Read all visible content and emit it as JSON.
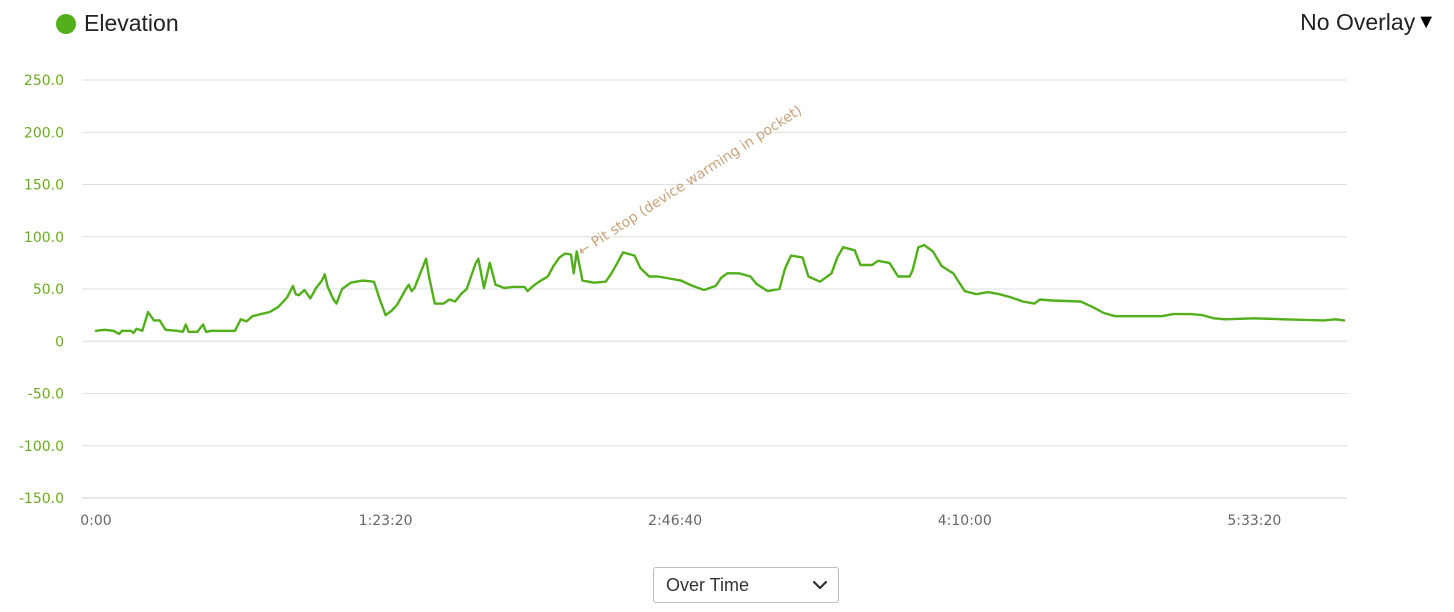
{
  "legend": {
    "label": "Elevation",
    "color": "#52ae1b"
  },
  "overlay": {
    "label": "No Overlay",
    "caret": "▼"
  },
  "mode_select": {
    "selected": "Over Time",
    "icon": "chevron-down-icon"
  },
  "chart_data": {
    "type": "line",
    "title": "",
    "series": [
      {
        "name": "Elevation",
        "color": "#52ae1b"
      }
    ],
    "xlim": [
      0,
      21600
    ],
    "ylim": [
      -150,
      250
    ],
    "y_ticks": [
      250,
      200,
      150,
      100,
      50,
      0,
      -50,
      -100,
      -150
    ],
    "y_tick_labels": [
      "250.0",
      "200.0",
      "150.0",
      "100.0",
      "50.0",
      "0",
      "-50.0",
      "-100.0",
      "-150.0"
    ],
    "x_ticks": [
      0,
      5000,
      10000,
      15000,
      20000
    ],
    "x_tick_labels": [
      "0:00",
      "1:23:20",
      "2:46:40",
      "4:10:00",
      "5:33:20"
    ],
    "grid": true,
    "label_color": "#6aaa1f",
    "x_label_color": "#666666",
    "annotation": {
      "text": "← Pit stop (device warming in pocket)",
      "x": 8300,
      "y": 90,
      "color": "#c8a27a"
    },
    "points": [
      [
        0,
        10
      ],
      [
        150,
        11
      ],
      [
        300,
        10
      ],
      [
        400,
        7
      ],
      [
        450,
        10
      ],
      [
        600,
        10
      ],
      [
        650,
        8
      ],
      [
        700,
        12
      ],
      [
        800,
        10
      ],
      [
        900,
        28
      ],
      [
        1000,
        20
      ],
      [
        1100,
        20
      ],
      [
        1200,
        11
      ],
      [
        1400,
        10
      ],
      [
        1500,
        9
      ],
      [
        1550,
        16
      ],
      [
        1600,
        9
      ],
      [
        1750,
        9
      ],
      [
        1850,
        16
      ],
      [
        1900,
        9
      ],
      [
        2000,
        10
      ],
      [
        2300,
        10
      ],
      [
        2400,
        10
      ],
      [
        2500,
        21
      ],
      [
        2600,
        19
      ],
      [
        2700,
        24
      ],
      [
        2850,
        26
      ],
      [
        3000,
        28
      ],
      [
        3150,
        33
      ],
      [
        3300,
        42
      ],
      [
        3400,
        53
      ],
      [
        3450,
        45
      ],
      [
        3500,
        44
      ],
      [
        3600,
        49
      ],
      [
        3700,
        41
      ],
      [
        3800,
        51
      ],
      [
        3900,
        58
      ],
      [
        3950,
        64
      ],
      [
        4000,
        52
      ],
      [
        4100,
        40
      ],
      [
        4150,
        36
      ],
      [
        4250,
        50
      ],
      [
        4400,
        56
      ],
      [
        4600,
        58
      ],
      [
        4800,
        57
      ],
      [
        4900,
        40
      ],
      [
        5000,
        25
      ],
      [
        5100,
        29
      ],
      [
        5200,
        35
      ],
      [
        5350,
        50
      ],
      [
        5400,
        54
      ],
      [
        5450,
        48
      ],
      [
        5500,
        51
      ],
      [
        5600,
        65
      ],
      [
        5700,
        79
      ],
      [
        5750,
        62
      ],
      [
        5850,
        36
      ],
      [
        6000,
        36
      ],
      [
        6100,
        40
      ],
      [
        6200,
        38
      ],
      [
        6300,
        45
      ],
      [
        6400,
        50
      ],
      [
        6550,
        74
      ],
      [
        6600,
        79
      ],
      [
        6700,
        51
      ],
      [
        6800,
        75
      ],
      [
        6900,
        54
      ],
      [
        7050,
        51
      ],
      [
        7200,
        52
      ],
      [
        7400,
        52
      ],
      [
        7450,
        48
      ],
      [
        7550,
        53
      ],
      [
        7650,
        57
      ],
      [
        7800,
        62
      ],
      [
        7900,
        72
      ],
      [
        8000,
        80
      ],
      [
        8100,
        84
      ],
      [
        8200,
        83
      ],
      [
        8250,
        65
      ],
      [
        8300,
        86
      ],
      [
        8400,
        58
      ],
      [
        8600,
        56
      ],
      [
        8800,
        57
      ],
      [
        8900,
        65
      ],
      [
        9000,
        75
      ],
      [
        9100,
        85
      ],
      [
        9300,
        82
      ],
      [
        9400,
        70
      ],
      [
        9550,
        62
      ],
      [
        9700,
        62
      ],
      [
        9900,
        60
      ],
      [
        10100,
        58
      ],
      [
        10300,
        53
      ],
      [
        10500,
        49
      ],
      [
        10700,
        53
      ],
      [
        10800,
        61
      ],
      [
        10900,
        65
      ],
      [
        11100,
        65
      ],
      [
        11300,
        62
      ],
      [
        11400,
        55
      ],
      [
        11600,
        48
      ],
      [
        11800,
        50
      ],
      [
        11900,
        70
      ],
      [
        12000,
        82
      ],
      [
        12200,
        80
      ],
      [
        12300,
        62
      ],
      [
        12500,
        57
      ],
      [
        12700,
        65
      ],
      [
        12800,
        80
      ],
      [
        12900,
        90
      ],
      [
        13100,
        87
      ],
      [
        13200,
        73
      ],
      [
        13400,
        73
      ],
      [
        13500,
        77
      ],
      [
        13700,
        75
      ],
      [
        13850,
        62
      ],
      [
        14050,
        62
      ],
      [
        14100,
        68
      ],
      [
        14200,
        90
      ],
      [
        14300,
        92
      ],
      [
        14450,
        86
      ],
      [
        14600,
        72
      ],
      [
        14800,
        65
      ],
      [
        15000,
        48
      ],
      [
        15200,
        45
      ],
      [
        15400,
        47
      ],
      [
        15600,
        45
      ],
      [
        15800,
        42
      ],
      [
        16000,
        38
      ],
      [
        16200,
        36
      ],
      [
        16300,
        40
      ],
      [
        16500,
        39
      ],
      [
        17000,
        38
      ],
      [
        17200,
        33
      ],
      [
        17400,
        27
      ],
      [
        17600,
        24
      ],
      [
        18400,
        24
      ],
      [
        18600,
        26
      ],
      [
        18900,
        26
      ],
      [
        19100,
        25
      ],
      [
        19300,
        22
      ],
      [
        19500,
        21
      ],
      [
        20000,
        22
      ],
      [
        20500,
        21
      ],
      [
        21200,
        20
      ],
      [
        21400,
        21
      ],
      [
        21550,
        20
      ]
    ]
  }
}
